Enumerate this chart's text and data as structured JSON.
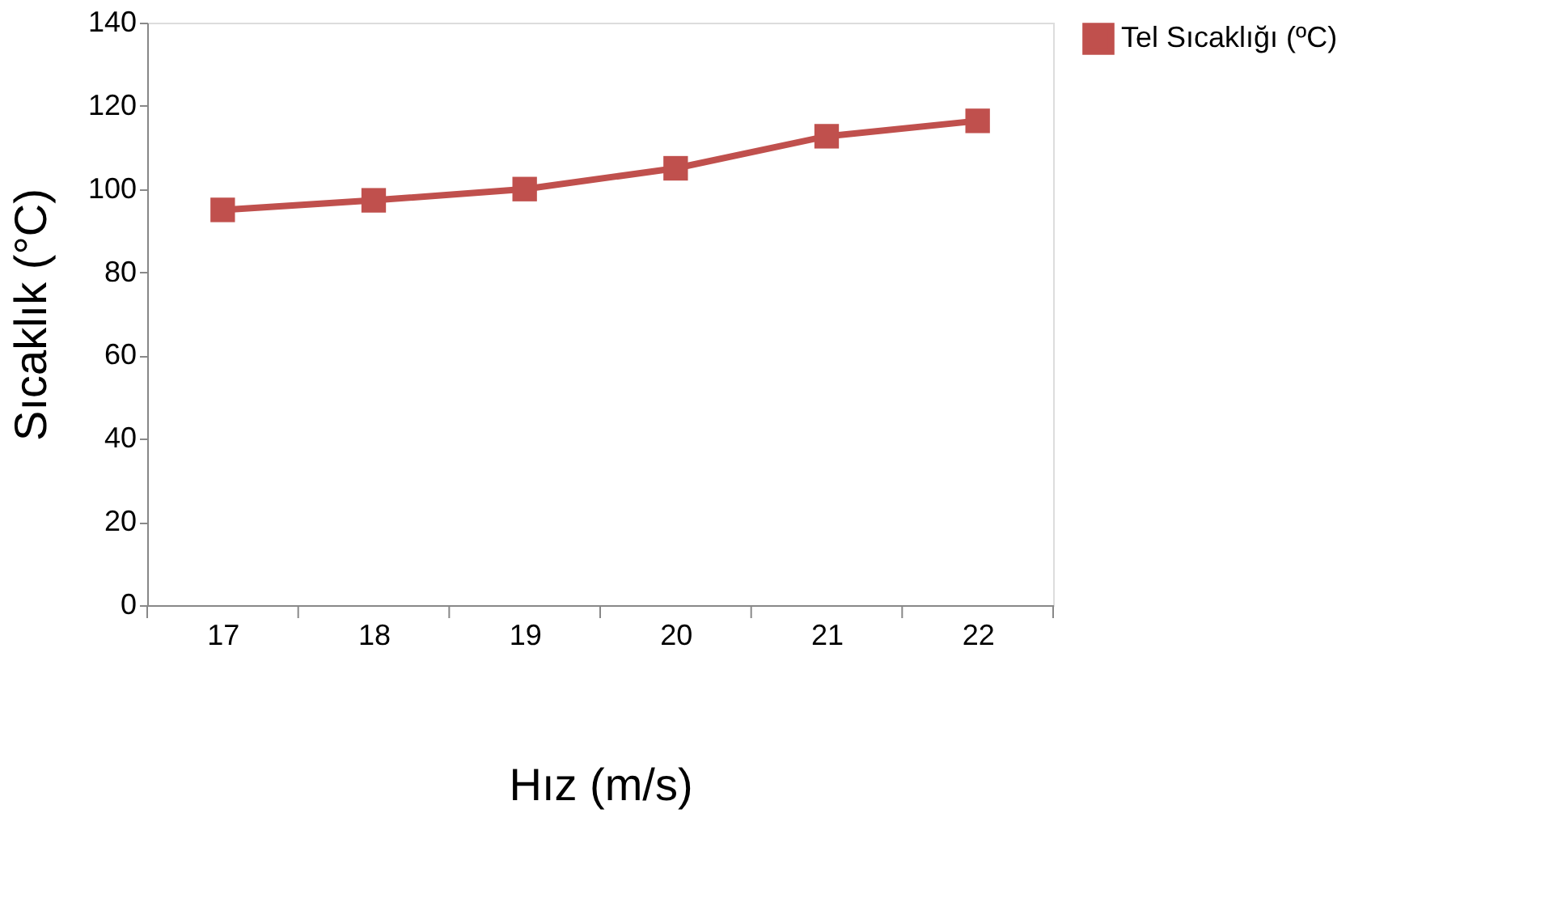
{
  "chart_data": {
    "type": "line",
    "xlabel": "Hız (m/s)",
    "ylabel": "Sıcaklık (°C)",
    "categories": [
      "17",
      "18",
      "19",
      "20",
      "21",
      "22"
    ],
    "series": [
      {
        "name": "Tel Sıcaklığı (ºC)",
        "color": "#c0504d",
        "values": [
          95,
          97.3,
          100,
          105,
          112.7,
          116.4
        ]
      }
    ],
    "ylim": [
      0,
      140
    ],
    "yticks": [
      0,
      20,
      40,
      60,
      80,
      100,
      120,
      140
    ],
    "grid": false,
    "legend": "right",
    "marker": "square",
    "line_style": "solid"
  }
}
